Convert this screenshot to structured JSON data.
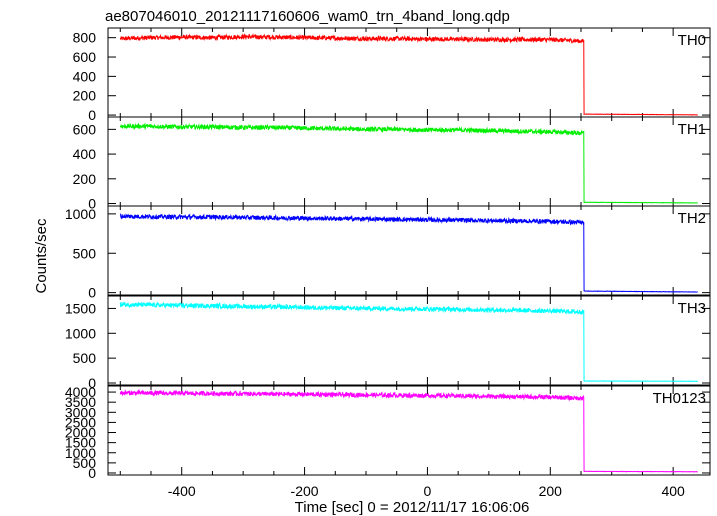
{
  "chart_data": {
    "type": "line",
    "title": "ae807046010_20121117160606_wam0_trn_4band_long.qdp",
    "xlabel": "Time [sec] 0 = 2012/11/17 16:06:06",
    "ylabel": "Counts/sec",
    "xlim": [
      -520,
      460
    ],
    "x_ticks": [
      -400,
      -200,
      0,
      200,
      400
    ],
    "grid": false,
    "panels": [
      {
        "label": "TH0",
        "color": "#ff0000",
        "ylim": [
          -20,
          900
        ],
        "y_ticks": [
          0,
          200,
          400,
          600,
          800
        ],
        "x": [
          -500,
          -450,
          -400,
          -350,
          -300,
          -250,
          -200,
          -150,
          -100,
          -50,
          0,
          50,
          100,
          150,
          200,
          250,
          255,
          300,
          350,
          400,
          440
        ],
        "y": [
          790,
          800,
          805,
          800,
          810,
          805,
          800,
          795,
          790,
          790,
          785,
          785,
          780,
          780,
          780,
          765,
          10,
          5,
          4,
          3,
          2
        ]
      },
      {
        "label": "TH1",
        "color": "#00ee00",
        "ylim": [
          -20,
          700
        ],
        "y_ticks": [
          0,
          200,
          400,
          600
        ],
        "x": [
          -500,
          -450,
          -400,
          -350,
          -300,
          -250,
          -200,
          -150,
          -100,
          -50,
          0,
          50,
          100,
          150,
          200,
          250,
          255,
          300,
          350,
          400,
          440
        ],
        "y": [
          625,
          625,
          620,
          620,
          615,
          615,
          610,
          605,
          600,
          600,
          595,
          595,
          590,
          585,
          580,
          570,
          10,
          8,
          6,
          5,
          5
        ]
      },
      {
        "label": "TH2",
        "color": "#0000ff",
        "ylim": [
          -30,
          1100
        ],
        "y_ticks": [
          0,
          500,
          1000
        ],
        "x": [
          -500,
          -450,
          -400,
          -350,
          -300,
          -250,
          -200,
          -150,
          -100,
          -50,
          0,
          50,
          100,
          150,
          200,
          250,
          255,
          300,
          350,
          400,
          440
        ],
        "y": [
          970,
          965,
          960,
          960,
          955,
          950,
          945,
          940,
          935,
          930,
          925,
          920,
          915,
          910,
          905,
          890,
          20,
          15,
          12,
          10,
          8
        ]
      },
      {
        "label": "TH3",
        "color": "#00ffff",
        "ylim": [
          -40,
          1750
        ],
        "y_ticks": [
          0,
          500,
          1000,
          1500
        ],
        "x": [
          -500,
          -450,
          -400,
          -350,
          -300,
          -250,
          -200,
          -150,
          -100,
          -50,
          0,
          50,
          100,
          150,
          200,
          250,
          255,
          300,
          350,
          400,
          440
        ],
        "y": [
          1580,
          1570,
          1560,
          1550,
          1540,
          1530,
          1520,
          1510,
          1500,
          1495,
          1490,
          1480,
          1470,
          1460,
          1450,
          1430,
          40,
          38,
          36,
          35,
          35
        ]
      },
      {
        "label": "TH0123",
        "color": "#ff00ff",
        "ylim": [
          -100,
          4300
        ],
        "y_ticks": [
          0,
          500,
          1000,
          1500,
          2000,
          2500,
          3000,
          3500,
          4000
        ],
        "x": [
          -500,
          -450,
          -400,
          -350,
          -300,
          -250,
          -200,
          -150,
          -100,
          -50,
          0,
          50,
          100,
          150,
          200,
          250,
          255,
          300,
          350,
          400,
          440
        ],
        "y": [
          3960,
          3950,
          3940,
          3930,
          3920,
          3900,
          3890,
          3870,
          3860,
          3840,
          3830,
          3810,
          3790,
          3770,
          3750,
          3700,
          80,
          70,
          65,
          60,
          60
        ]
      }
    ]
  }
}
